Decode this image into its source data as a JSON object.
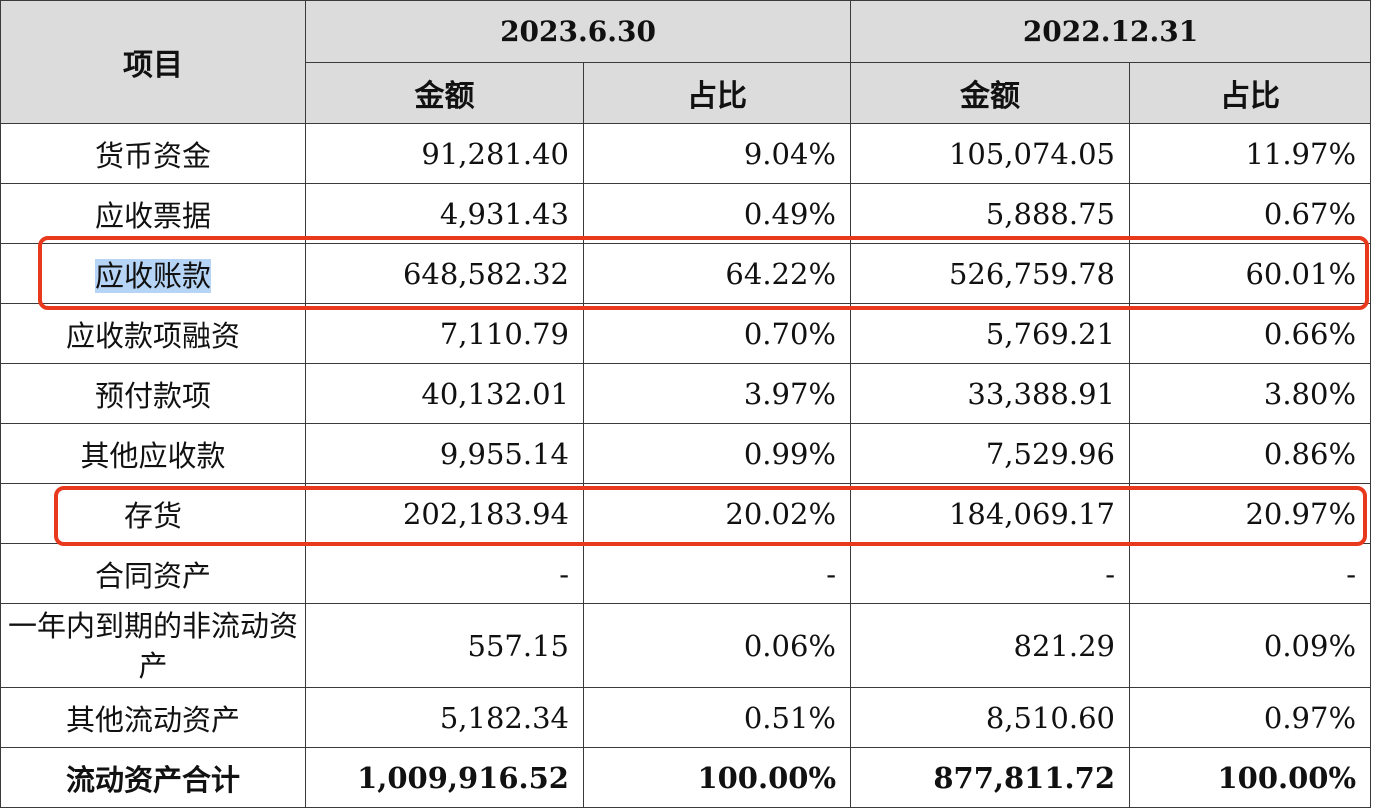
{
  "header": {
    "item_label": "项目",
    "periods": [
      {
        "date": "2023.6.30",
        "amount_label": "金额",
        "ratio_label": "占比"
      },
      {
        "date": "2022.12.31",
        "amount_label": "金额",
        "ratio_label": "占比"
      }
    ]
  },
  "rows": [
    {
      "item": "货币资金",
      "amount_2023": "91,281.40",
      "ratio_2023": "9.04%",
      "amount_2022": "105,074.05",
      "ratio_2022": "11.97%"
    },
    {
      "item": "应收票据",
      "amount_2023": "4,931.43",
      "ratio_2023": "0.49%",
      "amount_2022": "5,888.75",
      "ratio_2022": "0.67%"
    },
    {
      "item": "应收账款",
      "amount_2023": "648,582.32",
      "ratio_2023": "64.22%",
      "amount_2022": "526,759.78",
      "ratio_2022": "60.01%"
    },
    {
      "item": "应收款项融资",
      "amount_2023": "7,110.79",
      "ratio_2023": "0.70%",
      "amount_2022": "5,769.21",
      "ratio_2022": "0.66%"
    },
    {
      "item": "预付款项",
      "amount_2023": "40,132.01",
      "ratio_2023": "3.97%",
      "amount_2022": "33,388.91",
      "ratio_2022": "3.80%"
    },
    {
      "item": "其他应收款",
      "amount_2023": "9,955.14",
      "ratio_2023": "0.99%",
      "amount_2022": "7,529.96",
      "ratio_2022": "0.86%"
    },
    {
      "item": "存货",
      "amount_2023": "202,183.94",
      "ratio_2023": "20.02%",
      "amount_2022": "184,069.17",
      "ratio_2022": "20.97%"
    },
    {
      "item": "合同资产",
      "amount_2023": "-",
      "ratio_2023": "-",
      "amount_2022": "-",
      "ratio_2022": "-"
    },
    {
      "item": "一年内到期的非流动资产",
      "amount_2023": "557.15",
      "ratio_2023": "0.06%",
      "amount_2022": "821.29",
      "ratio_2022": "0.09%"
    },
    {
      "item": "其他流动资产",
      "amount_2023": "5,182.34",
      "ratio_2023": "0.51%",
      "amount_2022": "8,510.60",
      "ratio_2022": "0.97%"
    }
  ],
  "total": {
    "item": "流动资产合计",
    "amount_2023": "1,009,916.52",
    "ratio_2023": "100.00%",
    "amount_2022": "877,811.72",
    "ratio_2022": "100.00%"
  },
  "highlight_color": "#e8391d",
  "selection_color": "#b6d4f5"
}
